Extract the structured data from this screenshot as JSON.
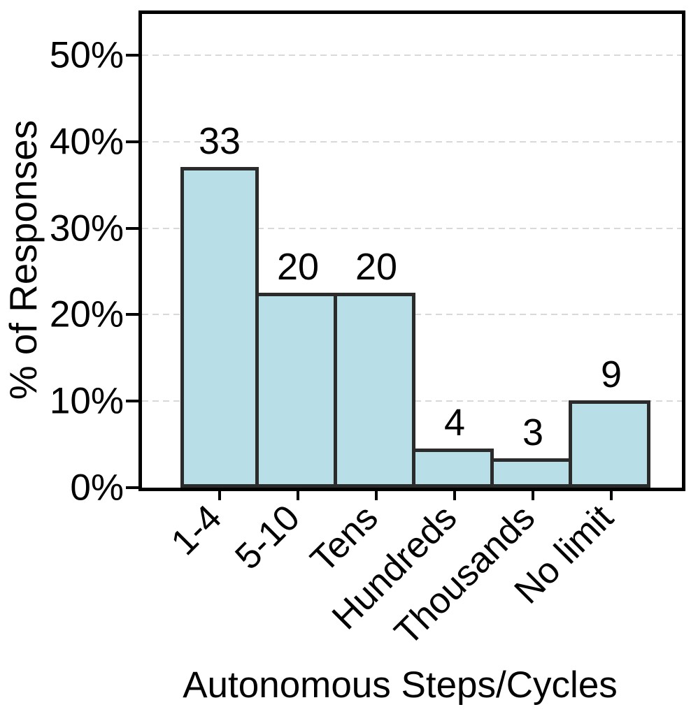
{
  "chart_data": {
    "type": "bar",
    "title": "",
    "xlabel": "Autonomous Steps/Cycles",
    "ylabel": "% of Responses",
    "categories": [
      "1-4",
      "5-10",
      "Tens",
      "Hundreds",
      "Thousands",
      "No limit"
    ],
    "series": [
      {
        "name": "Responses",
        "counts": [
          33,
          20,
          20,
          4,
          3,
          9
        ],
        "values_percent": [
          37.1,
          22.5,
          22.5,
          4.5,
          3.4,
          10.1
        ]
      }
    ],
    "bar_labels": [
      "33",
      "20",
      "20",
      "4",
      "3",
      "9"
    ],
    "yticks": [
      {
        "value": 0,
        "label": "0%"
      },
      {
        "value": 10,
        "label": "10%"
      },
      {
        "value": 20,
        "label": "20%"
      },
      {
        "value": 30,
        "label": "30%"
      },
      {
        "value": 40,
        "label": "40%"
      },
      {
        "value": 50,
        "label": "50%"
      }
    ],
    "ylim": [
      0,
      55
    ],
    "grid": "horizontal-dashed",
    "legend": "none",
    "colors": {
      "bar_fill": "#b8dee8",
      "bar_edge": "#2b2b2b",
      "gridline": "#d9d9d9",
      "axis": "#000000",
      "text": "#000000"
    }
  }
}
